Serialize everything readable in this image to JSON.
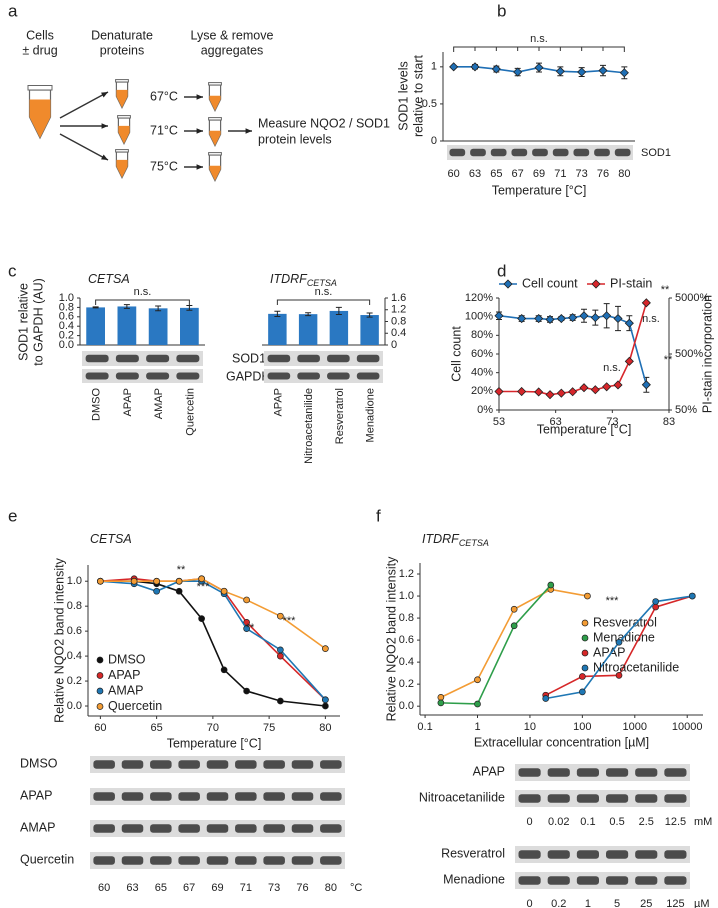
{
  "panels": [
    "a",
    "b",
    "c",
    "d",
    "e",
    "f"
  ],
  "diagram": {
    "steps": [
      [
        "Cells",
        "± drug"
      ],
      [
        "Denaturate",
        "proteins"
      ],
      [
        "Lyse & remove",
        "aggregates"
      ]
    ],
    "temperatures": [
      "67°C",
      "71°C",
      "75°C"
    ],
    "result": [
      "Measure NQO2 / SOD1",
      "protein levels"
    ]
  },
  "chart_data": [
    {
      "type": "line",
      "ylabel": [
        "SOD1 levels",
        "relative to start"
      ],
      "xlabel": "Temperature [°C]",
      "categories": [
        "60",
        "63",
        "65",
        "67",
        "69",
        "71",
        "73",
        "76",
        "80"
      ],
      "values": [
        1.0,
        1.0,
        0.97,
        0.93,
        0.99,
        0.94,
        0.93,
        0.95,
        0.92
      ],
      "errors": [
        0.01,
        0.03,
        0.04,
        0.05,
        0.06,
        0.06,
        0.06,
        0.07,
        0.08
      ],
      "color": "#1f6fb5",
      "ylim": [
        0,
        1.2
      ],
      "yticks": [
        0,
        0.5,
        1
      ],
      "annotation": "n.s.",
      "blot_label": "SOD1"
    },
    {
      "type": "bar",
      "title": "CETSA",
      "ylabel": [
        "SOD1 relative",
        "to GAPDH (AU)"
      ],
      "categories": [
        "DMSO",
        "APAP",
        "AMAP",
        "Quercetin"
      ],
      "values": [
        0.8,
        0.82,
        0.78,
        0.79
      ],
      "errors": [
        0.01,
        0.04,
        0.05,
        0.05
      ],
      "color": "#2a78c2",
      "ylim": [
        0,
        1.0
      ],
      "yticks": [
        {
          "value": 0,
          "label": "0.0"
        },
        0.2,
        0.4,
        0.6,
        0.8,
        {
          "value": 1,
          "label": "1.0"
        }
      ],
      "yaxis_side": "left",
      "annotation": "n.s.",
      "blot_labels": [
        "SOD1",
        "GAPDH"
      ]
    },
    {
      "type": "bar",
      "title": "ITDRF",
      "title_sub": "CETSA",
      "categories": [
        "APAP",
        "Nitroacetanilide",
        "Resveratrol",
        "Menadione"
      ],
      "values": [
        1.06,
        1.05,
        1.16,
        1.02
      ],
      "errors": [
        0.09,
        0.05,
        0.12,
        0.07
      ],
      "color": "#2a78c2",
      "ylim": [
        0,
        1.6
      ],
      "yticks": [
        0,
        0.4,
        0.8,
        1.2,
        1.6
      ],
      "yaxis_side": "right",
      "annotation": "n.s."
    },
    {
      "type": "dual",
      "xlabel": "Temperature [°C]",
      "ylabel": "Cell count",
      "y2label": "PI-stain incorporation",
      "x": [
        53,
        57,
        60,
        62,
        64,
        66,
        68,
        70,
        72,
        74,
        76,
        79
      ],
      "series": [
        {
          "name": "Cell count",
          "color": "#1f6fb5",
          "values": [
            101,
            98,
            98,
            97,
            98,
            99,
            101,
            99,
            101,
            98,
            93,
            27
          ],
          "errors": [
            4,
            3,
            3,
            3,
            2,
            3,
            7,
            8,
            13,
            13,
            8,
            8
          ]
        },
        {
          "name": "PI-stain",
          "color": "#d7262b",
          "axis": "y2",
          "values": [
            107,
            107,
            105,
            94,
            100,
            106,
            125,
            115,
            130,
            140,
            370,
            4100
          ]
        }
      ],
      "xlim": [
        53,
        83
      ],
      "xticks": [
        53,
        63,
        73,
        83
      ],
      "ylim": [
        0,
        120
      ],
      "yticks": [
        {
          "value": 0,
          "label": "0%"
        },
        {
          "value": 20,
          "label": "20%"
        },
        {
          "value": 40,
          "label": "40%"
        },
        {
          "value": 60,
          "label": "60%"
        },
        {
          "value": 80,
          "label": "80%"
        },
        {
          "value": 100,
          "label": "100%"
        },
        {
          "value": 120,
          "label": "120%"
        }
      ],
      "y2lim": [
        50,
        5000
      ],
      "y2log": true,
      "y2ticks": [
        {
          "value": 50,
          "label": "50%"
        },
        {
          "value": 500,
          "label": "500%"
        },
        {
          "value": 5000,
          "label": "5000%"
        }
      ],
      "annotations": [
        "n.s.",
        "n.s.",
        "**",
        "**"
      ]
    },
    {
      "type": "curves",
      "title": "CETSA",
      "ylabel": "Relative NQO2 band intensity",
      "xlabel": "Temperature [°C]",
      "x": [
        60,
        63,
        65,
        67,
        69,
        71,
        73,
        76,
        80
      ],
      "series": [
        {
          "name": "DMSO",
          "color": "#111111",
          "values": [
            1.0,
            1.0,
            0.98,
            0.92,
            0.7,
            0.29,
            0.12,
            0.04,
            0.0
          ]
        },
        {
          "name": "APAP",
          "color": "#d62728",
          "values": [
            1.0,
            1.02,
            1.0,
            1.0,
            1.02,
            0.92,
            0.67,
            0.4,
            0.05
          ]
        },
        {
          "name": "AMAP",
          "color": "#1f77b4",
          "values": [
            1.0,
            0.98,
            0.92,
            1.0,
            1.0,
            0.9,
            0.62,
            0.45,
            0.05
          ]
        },
        {
          "name": "Quercetin",
          "color": "#f39c34",
          "values": [
            1.0,
            1.0,
            1.0,
            1.0,
            1.02,
            0.92,
            0.85,
            0.72,
            0.46
          ]
        }
      ],
      "xlim": [
        58.9,
        81.3
      ],
      "xticks": [
        60,
        65,
        70,
        75,
        80
      ],
      "ylim": [
        -0.08,
        1.13
      ],
      "yticks": [
        {
          "value": 0,
          "label": "0.0"
        },
        0.2,
        0.4,
        0.6,
        0.8,
        {
          "value": 1,
          "label": "1.0"
        }
      ],
      "annotations": [
        "**",
        "***",
        "**",
        "***"
      ],
      "blot_rows": [
        "DMSO",
        "APAP",
        "AMAP",
        "Quercetin"
      ],
      "blot_lanes": [
        "60",
        "63",
        "65",
        "67",
        "69",
        "71",
        "73",
        "76",
        "80"
      ],
      "blot_unit": "°C"
    },
    {
      "type": "curves",
      "title": "ITDRF",
      "title_sub": "CETSA",
      "ylabel": "Relative NQO2 band intensity",
      "xlabel": "Extracellular concentration [µM]",
      "xlog": true,
      "series": [
        {
          "name": "Resveratrol",
          "color": "#f39c34",
          "x": [
            0.2,
            1,
            5,
            25,
            125
          ],
          "values": [
            0.08,
            0.24,
            0.88,
            1.06,
            1.0
          ]
        },
        {
          "name": "Menadione",
          "color": "#2e9e4a",
          "x": [
            0.2,
            1,
            5,
            25
          ],
          "values": [
            0.03,
            0.02,
            0.73,
            1.1
          ]
        },
        {
          "name": "APAP",
          "color": "#d62728",
          "x": [
            20,
            100,
            500,
            2500,
            12500
          ],
          "values": [
            0.1,
            0.27,
            0.28,
            0.9,
            1.0
          ]
        },
        {
          "name": "Nitroacetanilide",
          "color": "#1f77b4",
          "x": [
            20,
            100,
            500,
            2500,
            12500
          ],
          "values": [
            0.07,
            0.13,
            0.58,
            0.95,
            1.0
          ]
        }
      ],
      "xlim": [
        0.08,
        20000
      ],
      "xticks": [
        0.1,
        1,
        10,
        100,
        1000,
        10000
      ],
      "ylim": [
        -0.08,
        1.3
      ],
      "yticks": [
        {
          "value": 0,
          "label": "0.0"
        },
        0.2,
        0.4,
        0.6,
        0.8,
        {
          "value": 1,
          "label": "1.0"
        },
        1.2
      ],
      "annotations": [
        "***"
      ],
      "blot_groups": [
        {
          "rows": [
            "APAP",
            "Nitroacetanilide"
          ],
          "lanes": [
            "0",
            "0.02",
            "0.1",
            "0.5",
            "2.5",
            "12.5"
          ],
          "unit": "mM"
        },
        {
          "rows": [
            "Resveratrol",
            "Menadione"
          ],
          "lanes": [
            "0",
            "0.2",
            "1",
            "5",
            "25",
            "125"
          ],
          "unit": "µM"
        }
      ]
    }
  ]
}
